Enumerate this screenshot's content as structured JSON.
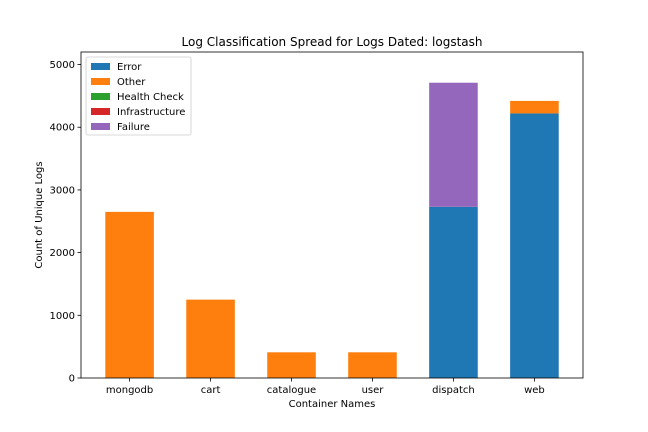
{
  "chart_data": {
    "type": "bar",
    "stacked": true,
    "title": "Log Classification Spread for Logs Dated: logstash",
    "xlabel": "Container Names",
    "ylabel": "Count of Unique Logs",
    "categories": [
      "mongodb",
      "cart",
      "catalogue",
      "user",
      "dispatch",
      "web"
    ],
    "ylim": [
      0,
      5200
    ],
    "yticks": [
      0,
      1000,
      2000,
      3000,
      4000,
      5000
    ],
    "legend_position": "top-left",
    "series": [
      {
        "name": "Error",
        "color": "#1f77b4",
        "values": [
          0,
          0,
          0,
          0,
          2730,
          4220
        ]
      },
      {
        "name": "Other",
        "color": "#ff7f0e",
        "values": [
          2650,
          1250,
          410,
          410,
          0,
          200
        ]
      },
      {
        "name": "Health Check",
        "color": "#2ca02c",
        "values": [
          0,
          0,
          0,
          0,
          0,
          0
        ]
      },
      {
        "name": "Infrastructure",
        "color": "#d62728",
        "values": [
          0,
          0,
          0,
          0,
          0,
          0
        ]
      },
      {
        "name": "Failure",
        "color": "#9467bd",
        "values": [
          0,
          0,
          0,
          0,
          1980,
          0
        ]
      }
    ]
  }
}
